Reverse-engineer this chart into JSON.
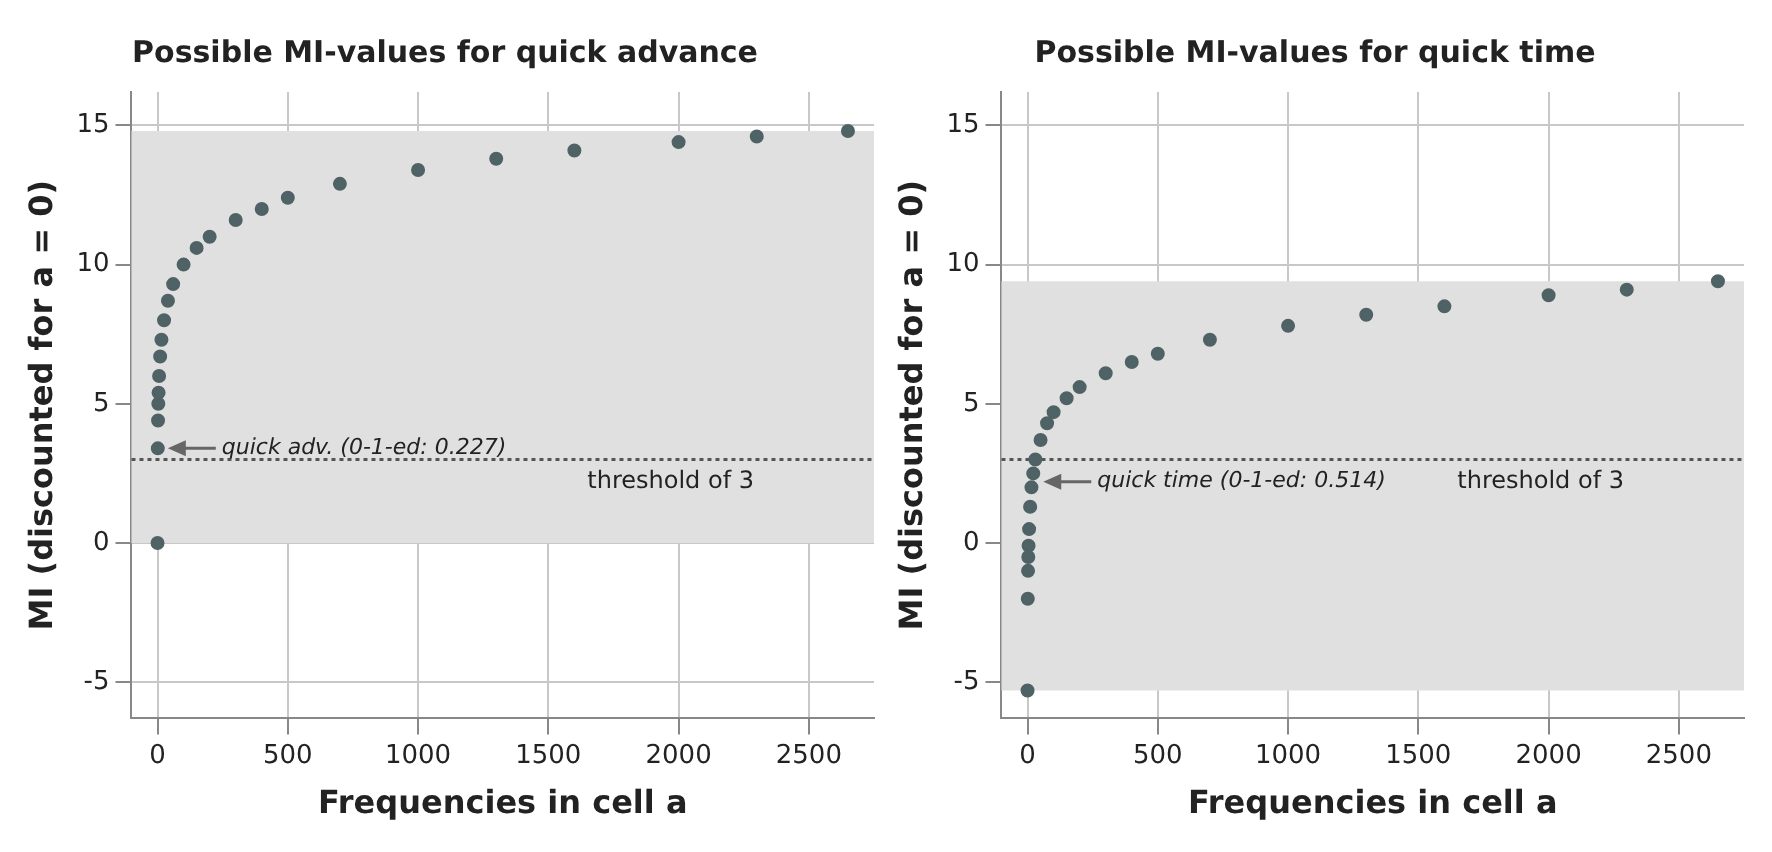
{
  "chart_data": [
    {
      "type": "scatter",
      "title": "Possible MI-values for quick advance",
      "xlabel": "Frequencies in cell a",
      "ylabel": "MI (discounted for a = 0)",
      "x": [
        0,
        1,
        2,
        3,
        4,
        6,
        10,
        15,
        25,
        40,
        60,
        100,
        150,
        200,
        300,
        400,
        500,
        700,
        1000,
        1300,
        1600,
        2000,
        2300,
        2650
      ],
      "series": [
        {
          "color": "#4f6266",
          "values": [
            0,
            3.4,
            4.4,
            5.0,
            5.4,
            6.0,
            6.7,
            7.3,
            8.0,
            8.7,
            9.3,
            10.0,
            10.6,
            11.0,
            11.6,
            12.0,
            12.4,
            12.9,
            13.4,
            13.8,
            14.1,
            14.4,
            14.6,
            14.8
          ]
        }
      ],
      "xlim": [
        -100,
        2750
      ],
      "xticks": [
        0,
        500,
        1000,
        1500,
        2000,
        2500
      ],
      "ylim": [
        -6.3,
        16.2
      ],
      "yticks": [
        -5,
        0,
        5,
        10,
        15
      ],
      "grid": true,
      "marker": "circle",
      "bands": [
        {
          "axis": "y",
          "from": 0,
          "to": 14.8,
          "color": "#dfe0df"
        }
      ],
      "ref_lines": [
        {
          "axis": "y",
          "value": 3,
          "label": "threshold of 3",
          "line_style": "dotted",
          "color": "#555555"
        }
      ],
      "annotations": [
        {
          "text": "quick adv. (0-1-ed: 0.227)",
          "x": 1,
          "y": 3.4
        }
      ]
    },
    {
      "type": "scatter",
      "title": "Possible MI-values for quick time",
      "xlabel": "Frequencies in cell a",
      "ylabel": "MI (discounted for a = 0)",
      "x": [
        0,
        1,
        2,
        3,
        4,
        6,
        10,
        15,
        22,
        30,
        50,
        75,
        100,
        150,
        200,
        300,
        400,
        500,
        700,
        1000,
        1300,
        1600,
        2000,
        2300,
        2650
      ],
      "series": [
        {
          "color": "#4f6266",
          "values": [
            -5.3,
            -2,
            -1,
            -0.5,
            -0.1,
            0.5,
            1.3,
            2.0,
            2.5,
            3.0,
            3.7,
            4.3,
            4.7,
            5.2,
            5.6,
            6.1,
            6.5,
            6.8,
            7.3,
            7.8,
            8.2,
            8.5,
            8.9,
            9.1,
            9.4
          ]
        }
      ],
      "xlim": [
        -100,
        2750
      ],
      "xticks": [
        0,
        500,
        1000,
        1500,
        2000,
        2500
      ],
      "ylim": [
        -6.3,
        16.2
      ],
      "yticks": [
        -5,
        0,
        5,
        10,
        15
      ],
      "grid": true,
      "marker": "circle",
      "bands": [
        {
          "axis": "y",
          "from": -5.3,
          "to": 9.4,
          "color": "#dfe0df"
        }
      ],
      "ref_lines": [
        {
          "axis": "y",
          "value": 3,
          "label": "threshold of 3",
          "line_style": "dotted",
          "color": "#555555"
        }
      ],
      "annotations": [
        {
          "text": "quick time (0-1-ed: 0.514)",
          "x": 22,
          "y": 2.2
        }
      ]
    }
  ]
}
